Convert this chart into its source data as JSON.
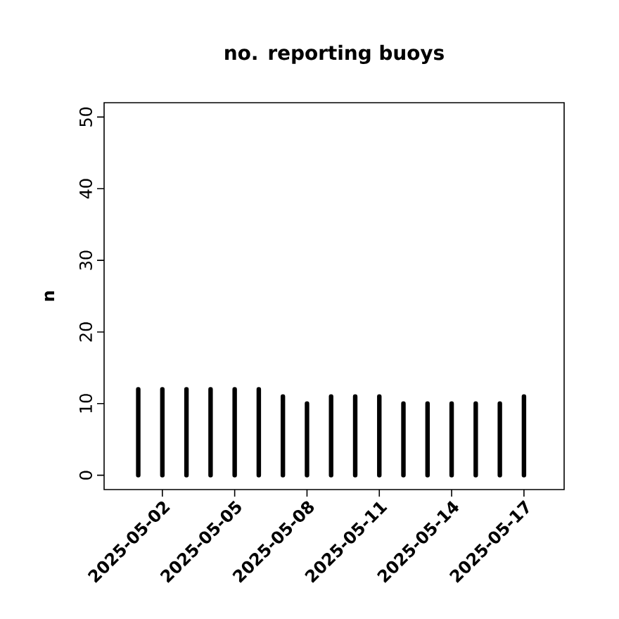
{
  "chart_data": {
    "type": "bar",
    "title": "no. reporting buoys",
    "ylabel": "n",
    "x": [
      "2025-05-01",
      "2025-05-02",
      "2025-05-03",
      "2025-05-04",
      "2025-05-05",
      "2025-05-06",
      "2025-05-07",
      "2025-05-08",
      "2025-05-09",
      "2025-05-10",
      "2025-05-11",
      "2025-05-12",
      "2025-05-13",
      "2025-05-14",
      "2025-05-15",
      "2025-05-16",
      "2025-05-17"
    ],
    "values": [
      12,
      12,
      12,
      12,
      12,
      12,
      11,
      10,
      11,
      11,
      11,
      10,
      10,
      10,
      10,
      10,
      11
    ],
    "color": "#000000",
    "xlim": [
      "2025-04-29T14:00",
      "2025-05-18T16:00"
    ],
    "xticks": [
      {
        "value": "2025-05-02",
        "label": "2025-05-02"
      },
      {
        "value": "2025-05-05",
        "label": "2025-05-05"
      },
      {
        "value": "2025-05-08",
        "label": "2025-05-08"
      },
      {
        "value": "2025-05-11",
        "label": "2025-05-11"
      },
      {
        "value": "2025-05-14",
        "label": "2025-05-14"
      },
      {
        "value": "2025-05-17",
        "label": "2025-05-17"
      }
    ],
    "ylim": [
      -2,
      52
    ],
    "yticks": [
      0,
      10,
      20,
      30,
      40,
      50
    ],
    "grid": false
  }
}
